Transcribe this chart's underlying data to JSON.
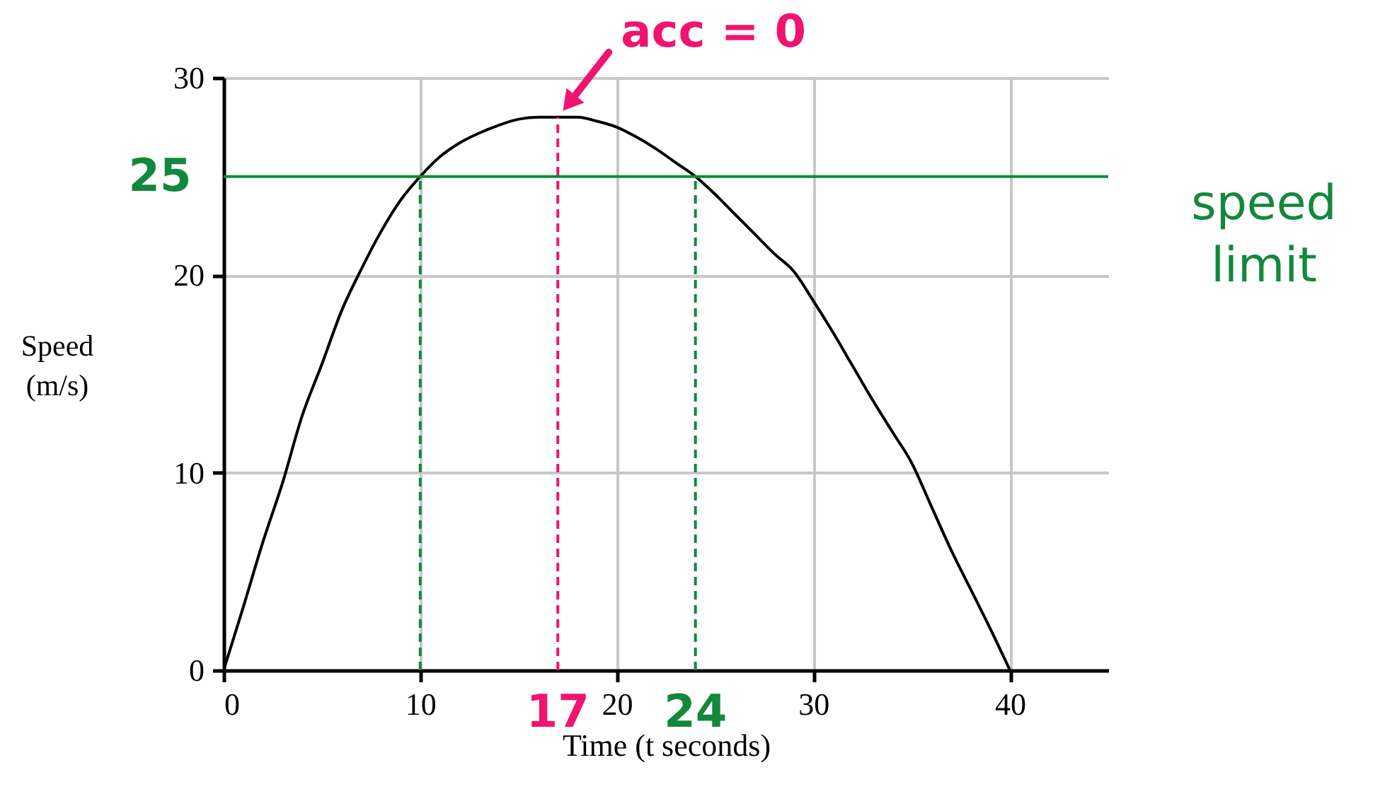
{
  "chart_data": {
    "type": "line",
    "xlabel": "Time (t seconds)",
    "ylabel": "Speed (m/s)",
    "xlim": [
      0,
      45
    ],
    "ylim": [
      0,
      30
    ],
    "xticks": [
      0,
      10,
      20,
      30,
      40
    ],
    "yticks": [
      0,
      10,
      20,
      30
    ],
    "grid": true,
    "series": [
      {
        "color": "#000000",
        "x": [
          0,
          1,
          2,
          3,
          4,
          5,
          6,
          7,
          8,
          9,
          10,
          11,
          12,
          13,
          14,
          15,
          16,
          17,
          18,
          19,
          20,
          21,
          22,
          23,
          24,
          25,
          26,
          27,
          28,
          29,
          30,
          31,
          32,
          33,
          34,
          35,
          36,
          37,
          38,
          39,
          40
        ],
        "values": [
          0,
          3.2,
          6.5,
          9.5,
          12.9,
          15.5,
          18.2,
          20.3,
          22.2,
          23.8,
          25,
          26,
          26.7,
          27.2,
          27.6,
          27.9,
          28,
          28,
          28,
          27.8,
          27.5,
          27,
          26.4,
          25.7,
          25,
          24.1,
          23.1,
          22.1,
          21.1,
          20.2,
          18.7,
          17.1,
          15.4,
          13.7,
          12.1,
          10.5,
          8.3,
          6.1,
          4.1,
          2.1,
          0
        ]
      },
      {
        "color": "#12883c",
        "line_style": "dashed",
        "x": [
          10,
          10
        ],
        "values": [
          0,
          25
        ]
      },
      {
        "color": "#12883c",
        "line_style": "dashed",
        "x": [
          24,
          24
        ],
        "values": [
          0,
          25
        ]
      },
      {
        "color": "#f0146e",
        "line_style": "dashed",
        "x": [
          17,
          17
        ],
        "values": [
          0,
          28
        ]
      }
    ],
    "ref_lines": [
      {
        "axis": "y",
        "value": 25,
        "label": "speed limit",
        "color": "#12883c"
      }
    ],
    "annotations": [
      {
        "text": "acc = 0",
        "x": 17,
        "y": 28
      },
      {
        "text": "25",
        "x": 0,
        "y": 25
      },
      {
        "text": "17",
        "x": 17,
        "y": 0
      },
      {
        "text": "24",
        "x": 24,
        "y": 0
      }
    ]
  }
}
